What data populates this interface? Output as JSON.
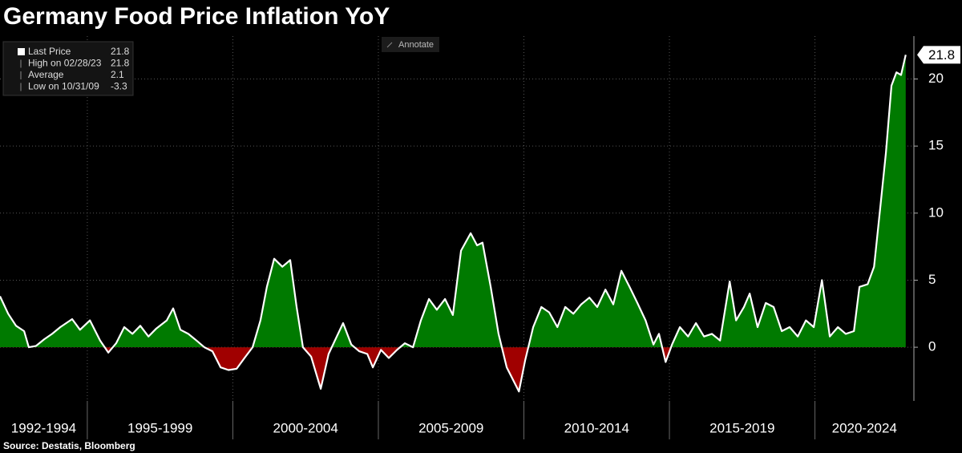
{
  "chart_data": {
    "type": "area",
    "title": "Germany Food Price Inflation YoY",
    "source": "Source: Destatis, Bloomberg",
    "annotate_label": "Annotate",
    "legend_items": [
      {
        "label": "Last Price",
        "value": 21.8
      },
      {
        "label": "High on 02/28/23",
        "value": 21.8
      },
      {
        "label": "Average",
        "value": 2.1
      },
      {
        "label": "Low on 10/31/09",
        "value": -3.3
      }
    ],
    "periods": [
      "1992-1994",
      "1995-1999",
      "2000-2004",
      "2005-2009",
      "2010-2014",
      "2015-2019",
      "2020-2024"
    ],
    "x": [
      1992.0,
      1992.28,
      1992.55,
      1992.83,
      1992.99,
      1993.24,
      1993.52,
      1993.79,
      1994.07,
      1994.48,
      1994.75,
      1995.09,
      1995.44,
      1995.72,
      1995.99,
      1996.27,
      1996.55,
      1996.82,
      1997.1,
      1997.37,
      1997.73,
      1997.95,
      1998.2,
      1998.47,
      1998.75,
      1999.02,
      1999.3,
      1999.58,
      1999.85,
      2000.13,
      2000.4,
      2000.68,
      2000.95,
      2001.17,
      2001.42,
      2001.7,
      2001.97,
      2002.19,
      2002.41,
      2002.69,
      2003.02,
      2003.29,
      2003.57,
      2003.79,
      2004.07,
      2004.34,
      2004.62,
      2004.81,
      2005.09,
      2005.36,
      2005.64,
      2005.91,
      2006.19,
      2006.46,
      2006.74,
      2007.01,
      2007.29,
      2007.56,
      2007.84,
      2008.17,
      2008.39,
      2008.58,
      2008.86,
      2009.13,
      2009.41,
      2009.83,
      2010.04,
      2010.32,
      2010.6,
      2010.87,
      2011.15,
      2011.42,
      2011.7,
      2011.97,
      2012.25,
      2012.52,
      2012.8,
      2013.07,
      2013.35,
      2013.63,
      2013.9,
      2014.18,
      2014.45,
      2014.64,
      2014.87,
      2015.09,
      2015.36,
      2015.64,
      2015.91,
      2016.19,
      2016.46,
      2016.74,
      2017.07,
      2017.29,
      2017.56,
      2017.76,
      2018.03,
      2018.31,
      2018.58,
      2018.86,
      2019.13,
      2019.41,
      2019.69,
      2019.96,
      2020.24,
      2020.51,
      2020.79,
      2021.06,
      2021.34,
      2021.53,
      2021.81,
      2022.03,
      2022.25,
      2022.44,
      2022.63,
      2022.8,
      2022.96,
      2023.12
    ],
    "values": [
      3.8,
      2.5,
      1.6,
      1.2,
      0.0,
      0.1,
      0.6,
      1.0,
      1.5,
      2.1,
      1.3,
      2.0,
      0.5,
      -0.4,
      0.3,
      1.5,
      1.0,
      1.6,
      0.8,
      1.4,
      2.0,
      2.9,
      1.3,
      1.0,
      0.5,
      0.0,
      -0.3,
      -1.5,
      -1.7,
      -1.6,
      -0.8,
      0.0,
      2.0,
      4.5,
      6.6,
      6.0,
      6.5,
      3.0,
      0.0,
      -0.7,
      -3.1,
      -0.5,
      0.8,
      1.8,
      0.2,
      -0.3,
      -0.5,
      -1.5,
      -0.2,
      -0.8,
      -0.2,
      0.3,
      0.0,
      2.0,
      3.6,
      2.8,
      3.6,
      2.4,
      7.2,
      8.5,
      7.6,
      7.8,
      4.5,
      1.0,
      -1.5,
      -3.3,
      -1.0,
      1.5,
      3.0,
      2.6,
      1.5,
      3.0,
      2.5,
      3.2,
      3.7,
      3.0,
      4.3,
      3.2,
      5.7,
      4.5,
      3.3,
      2.0,
      0.2,
      1.0,
      -1.1,
      0.2,
      1.5,
      0.8,
      1.8,
      0.8,
      1.0,
      0.5,
      4.9,
      2.0,
      3.0,
      4.0,
      1.5,
      3.3,
      3.0,
      1.2,
      1.5,
      0.8,
      2.0,
      1.5,
      5.0,
      0.8,
      1.5,
      1.0,
      1.2,
      4.5,
      4.7,
      6.0,
      10.5,
      14.5,
      19.5,
      20.5,
      20.3,
      21.8
    ],
    "color": "#ffffff",
    "positive_color": "#007a00",
    "negative_color": "#a00000",
    "xlim": [
      1992,
      2023.4
    ],
    "ylim": [
      -4,
      23.2
    ],
    "yticks": [
      0,
      5,
      10,
      15,
      20
    ],
    "grid": true
  }
}
